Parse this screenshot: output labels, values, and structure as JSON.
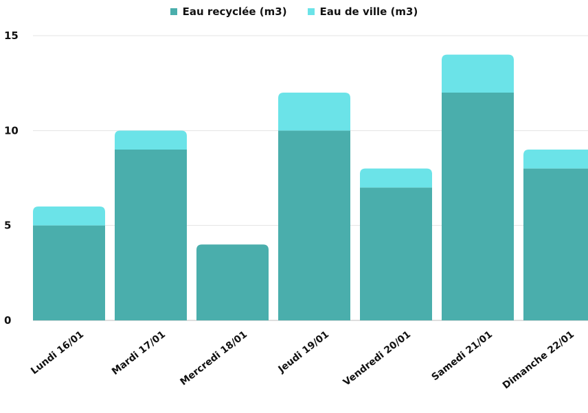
{
  "chart_data": {
    "type": "bar",
    "stacked": true,
    "categories": [
      "Lundi 16/01",
      "Mardi 17/01",
      "Mercredi 18/01",
      "Jeudi 19/01",
      "Vendredi 20/01",
      "Samedi 21/01",
      "Dimanche 22/01"
    ],
    "series": [
      {
        "name": "Eau recyclée (m3)",
        "values": [
          5,
          9,
          4,
          10,
          7,
          12,
          8
        ],
        "color": "#4aaeac"
      },
      {
        "name": "Eau de ville (m3)",
        "values": [
          1,
          1,
          0,
          2,
          1,
          2,
          1
        ],
        "color": "#6be3e8"
      }
    ],
    "yticks": [
      "0",
      "5",
      "10",
      "15"
    ],
    "ylim": [
      0,
      15
    ],
    "grid": true,
    "legend_position": "top-center"
  }
}
